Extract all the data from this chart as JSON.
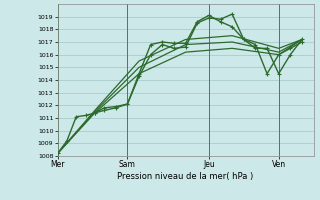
{
  "title": "",
  "xlabel": "Pression niveau de la mer( hPa )",
  "bg_color": "#cce8e8",
  "grid_color": "#aacccc",
  "line_color": "#2d6a2d",
  "ylim": [
    1008,
    1020
  ],
  "yticks": [
    1008,
    1009,
    1010,
    1011,
    1012,
    1013,
    1014,
    1015,
    1016,
    1017,
    1018,
    1019
  ],
  "day_labels": [
    "Mer",
    "Sam",
    "Jeu",
    "Ven"
  ],
  "day_positions": [
    0.0,
    3.0,
    6.5,
    9.5
  ],
  "xlim": [
    0,
    11.0
  ],
  "line1": {
    "x": [
      0.0,
      0.4,
      0.8,
      1.2,
      1.6,
      2.0,
      2.5,
      3.0,
      3.5,
      4.0,
      4.5,
      5.0,
      5.5,
      6.0,
      6.5,
      7.0,
      7.5,
      8.0,
      8.5,
      9.0,
      9.5,
      10.0,
      10.5
    ],
    "y": [
      1008.2,
      1009.2,
      1011.1,
      1011.2,
      1011.4,
      1011.6,
      1011.8,
      1012.1,
      1014.3,
      1016.0,
      1016.8,
      1016.5,
      1016.6,
      1018.5,
      1018.9,
      1018.8,
      1019.2,
      1017.2,
      1016.5,
      1016.5,
      1014.5,
      1016.0,
      1017.2
    ]
  },
  "line2": {
    "x": [
      1.6,
      2.0,
      2.5,
      3.0,
      3.5,
      4.0,
      4.5,
      5.0,
      5.5,
      6.0,
      6.5,
      7.0,
      7.5,
      8.0,
      8.5,
      9.0,
      9.5,
      10.0,
      10.5
    ],
    "y": [
      1011.4,
      1011.8,
      1011.9,
      1012.1,
      1014.5,
      1016.8,
      1017.0,
      1016.9,
      1016.9,
      1018.6,
      1019.1,
      1018.6,
      1018.2,
      1017.2,
      1016.8,
      1014.5,
      1016.0,
      1016.5,
      1017.0
    ]
  },
  "straight_lines": [
    {
      "x": [
        0.0,
        10.5
      ],
      "y": [
        1008.2,
        1017.2
      ]
    },
    {
      "x": [
        0.0,
        10.5
      ],
      "y": [
        1008.2,
        1017.2
      ]
    },
    {
      "x": [
        0.0,
        10.5
      ],
      "y": [
        1008.2,
        1017.2
      ]
    }
  ],
  "smooth_lines": [
    {
      "x": [
        0.0,
        1.6,
        3.5,
        5.5,
        7.5,
        9.5,
        10.5
      ],
      "y": [
        1008.2,
        1011.4,
        1014.5,
        1016.2,
        1016.5,
        1016.0,
        1017.2
      ]
    },
    {
      "x": [
        0.0,
        1.6,
        3.5,
        5.5,
        7.5,
        9.5,
        10.5
      ],
      "y": [
        1008.2,
        1011.5,
        1015.0,
        1016.8,
        1017.0,
        1016.2,
        1017.2
      ]
    },
    {
      "x": [
        0.0,
        1.6,
        3.5,
        5.5,
        7.5,
        9.5,
        10.5
      ],
      "y": [
        1008.2,
        1011.6,
        1015.5,
        1017.2,
        1017.5,
        1016.5,
        1017.2
      ]
    }
  ]
}
